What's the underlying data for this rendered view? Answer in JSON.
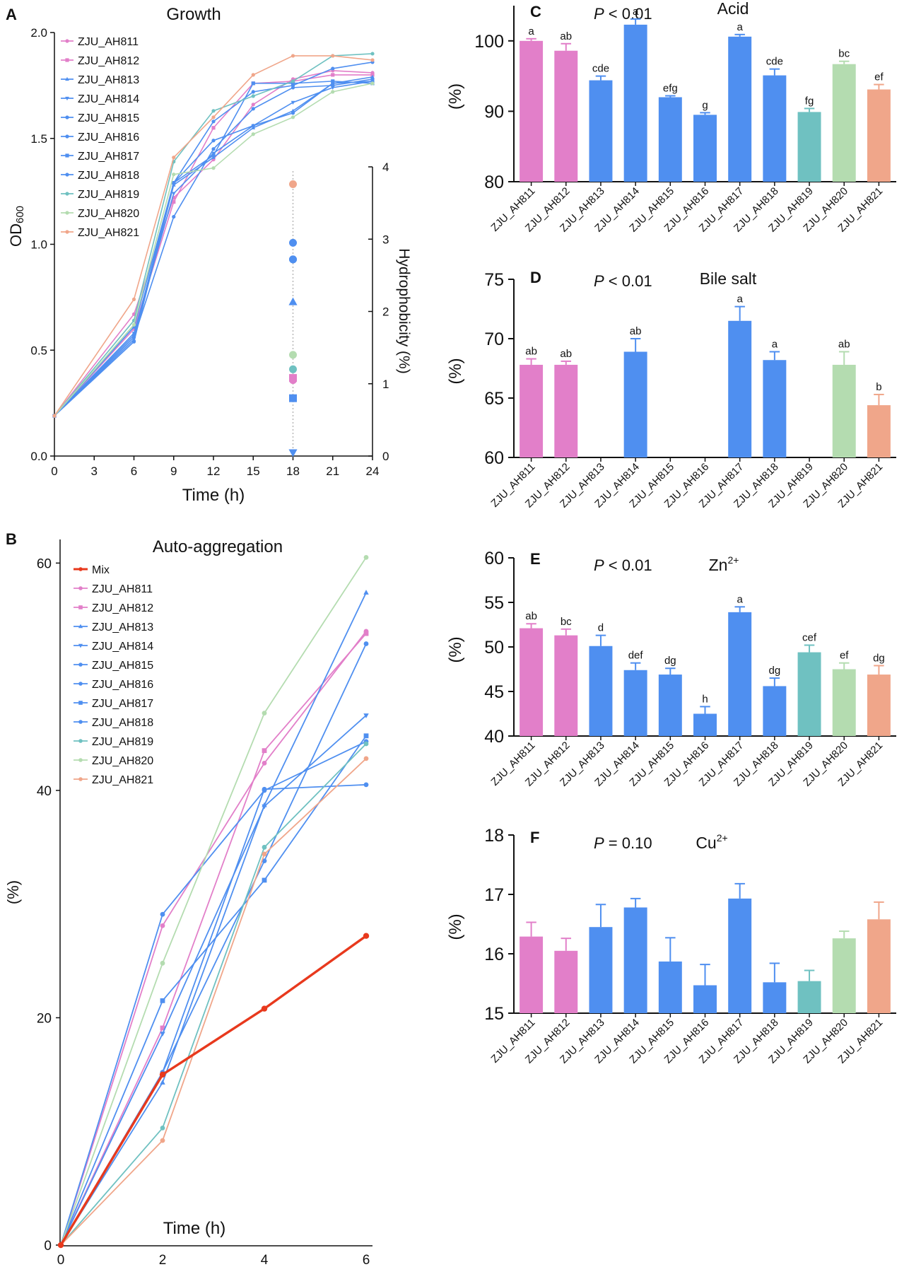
{
  "strains": [
    "ZJU_AH811",
    "ZJU_AH812",
    "ZJU_AH813",
    "ZJU_AH814",
    "ZJU_AH815",
    "ZJU_AH816",
    "ZJU_AH817",
    "ZJU_AH818",
    "ZJU_AH819",
    "ZJU_AH820",
    "ZJU_AH821"
  ],
  "colors": [
    "#e27fc9",
    "#e27fc9",
    "#4f8ff0",
    "#4f8ff0",
    "#4f8ff0",
    "#4f8ff0",
    "#4f8ff0",
    "#4f8ff0",
    "#6fc1c1",
    "#b4dcb0",
    "#f0a68a"
  ],
  "mix_color": "#e8391d",
  "chart_data": [
    {
      "panel": "A",
      "type": "line",
      "title": "Growth",
      "xlabel": "Time (h)",
      "ylabel_main": "OD",
      "ylabel_sub": "600",
      "y2label": "Hydrophobicity (%)",
      "x": [
        0,
        6,
        9,
        12,
        15,
        18,
        21,
        24
      ],
      "xlim": [
        0,
        24
      ],
      "ylim": [
        0,
        2.0
      ],
      "xticks": [
        "0",
        "3",
        "6",
        "9",
        "12",
        "15",
        "18",
        "21",
        "24"
      ],
      "yticks": [
        "0.0",
        "0.5",
        "1.0",
        "1.5",
        "2.0"
      ],
      "y2lim": [
        0,
        4
      ],
      "y2ticks": [
        "0",
        "1",
        "2",
        "3",
        "4"
      ],
      "series": [
        {
          "name": "ZJU_AH811",
          "values": [
            0.19,
            0.67,
            1.22,
            1.4,
            1.66,
            1.78,
            1.82,
            1.81
          ]
        },
        {
          "name": "ZJU_AH812",
          "values": [
            0.19,
            0.6,
            1.2,
            1.55,
            1.76,
            1.77,
            1.8,
            1.8
          ]
        },
        {
          "name": "ZJU_AH813",
          "values": [
            0.19,
            0.55,
            1.28,
            1.41,
            1.55,
            1.63,
            1.76,
            1.79
          ]
        },
        {
          "name": "ZJU_AH814",
          "values": [
            0.19,
            0.58,
            1.24,
            1.43,
            1.56,
            1.67,
            1.74,
            1.77
          ]
        },
        {
          "name": "ZJU_AH815",
          "values": [
            0.19,
            0.56,
            1.13,
            1.45,
            1.64,
            1.74,
            1.75,
            1.78
          ]
        },
        {
          "name": "ZJU_AH816",
          "values": [
            0.19,
            0.54,
            1.29,
            1.49,
            1.56,
            1.62,
            1.76,
            1.77
          ]
        },
        {
          "name": "ZJU_AH817",
          "values": [
            0.19,
            0.57,
            1.29,
            1.42,
            1.76,
            1.76,
            1.77,
            1.76
          ]
        },
        {
          "name": "ZJU_AH818",
          "values": [
            0.19,
            0.61,
            1.29,
            1.58,
            1.72,
            1.75,
            1.83,
            1.86
          ]
        },
        {
          "name": "ZJU_AH819",
          "values": [
            0.19,
            0.64,
            1.39,
            1.63,
            1.7,
            1.77,
            1.89,
            1.9
          ]
        },
        {
          "name": "ZJU_AH820",
          "values": [
            0.19,
            0.62,
            1.33,
            1.36,
            1.52,
            1.6,
            1.72,
            1.76
          ]
        },
        {
          "name": "ZJU_AH821",
          "values": [
            0.19,
            0.74,
            1.41,
            1.6,
            1.8,
            1.89,
            1.89,
            1.87
          ]
        }
      ],
      "hydrophobicity_x": 18,
      "hydrophobicity": [
        {
          "strain": "ZJU_AH811",
          "value": 1.05,
          "marker": "circle"
        },
        {
          "strain": "ZJU_AH812",
          "value": 1.08,
          "marker": "square"
        },
        {
          "strain": "ZJU_AH813",
          "value": 2.95,
          "marker": "circle"
        },
        {
          "strain": "ZJU_AH814",
          "value": 0.05,
          "marker": "triangle-down"
        },
        {
          "strain": "ZJU_AH815",
          "value": 2.72,
          "marker": "circle"
        },
        {
          "strain": "ZJU_AH816",
          "value": 2.72,
          "marker": "circle"
        },
        {
          "strain": "ZJU_AH817",
          "value": 0.8,
          "marker": "square"
        },
        {
          "strain": "ZJU_AH818",
          "value": 2.13,
          "marker": "triangle"
        },
        {
          "strain": "ZJU_AH819",
          "value": 1.2,
          "marker": "circle"
        },
        {
          "strain": "ZJU_AH820",
          "value": 1.4,
          "marker": "circle"
        },
        {
          "strain": "ZJU_AH821",
          "value": 3.76,
          "marker": "circle"
        }
      ]
    },
    {
      "panel": "B",
      "type": "line",
      "title": "Auto-aggregation",
      "xlabel": "Time (h)",
      "ylabel": "(%)",
      "x": [
        0,
        2,
        4,
        6
      ],
      "xlim": [
        0,
        6
      ],
      "ylim": [
        0,
        65
      ],
      "xticks": [
        "0",
        "2",
        "4",
        "6"
      ],
      "yticks": [
        "0",
        "20",
        "40",
        "60"
      ],
      "mix": {
        "name": "Mix",
        "values": [
          0,
          15.0,
          20.8,
          27.2
        ]
      },
      "series": [
        {
          "name": "ZJU_AH811",
          "values": [
            0,
            28.1,
            42.4,
            54.0
          ]
        },
        {
          "name": "ZJU_AH812",
          "values": [
            0,
            19.1,
            43.5,
            53.8
          ]
        },
        {
          "name": "ZJU_AH813",
          "values": [
            0,
            14.3,
            38.7,
            57.4
          ]
        },
        {
          "name": "ZJU_AH814",
          "values": [
            0,
            18.6,
            38.6,
            46.6
          ]
        },
        {
          "name": "ZJU_AH815",
          "values": [
            0,
            29.1,
            40.0,
            44.3
          ]
        },
        {
          "name": "ZJU_AH816",
          "values": [
            0,
            15.2,
            40.1,
            40.5
          ]
        },
        {
          "name": "ZJU_AH817",
          "values": [
            0,
            21.5,
            32.1,
            44.8
          ]
        },
        {
          "name": "ZJU_AH818",
          "values": [
            0,
            15.2,
            33.8,
            52.9
          ]
        },
        {
          "name": "ZJU_AH819",
          "values": [
            0,
            10.3,
            35.0,
            44.1
          ]
        },
        {
          "name": "ZJU_AH820",
          "values": [
            0,
            24.8,
            46.8,
            60.5
          ]
        },
        {
          "name": "ZJU_AH821",
          "values": [
            0,
            9.2,
            34.4,
            42.8
          ]
        }
      ]
    },
    {
      "panel": "C",
      "type": "bar",
      "title": "Acid",
      "stat_p": "P",
      "stat_rest": " < 0.01",
      "ylabel": "(%)",
      "ylim": [
        80,
        105
      ],
      "yticks": [
        "80",
        "90",
        "100"
      ],
      "values": [
        100.0,
        98.6,
        94.4,
        102.3,
        92.0,
        89.5,
        100.6,
        95.1,
        89.9,
        96.7,
        93.1
      ],
      "errors": [
        0.3,
        1.0,
        0.6,
        0.8,
        0.2,
        0.3,
        0.3,
        0.9,
        0.5,
        0.4,
        0.7
      ],
      "letters": [
        "a",
        "ab",
        "cde",
        "a",
        "efg",
        "g",
        "a",
        "cde",
        "fg",
        "bc",
        "ef"
      ]
    },
    {
      "panel": "D",
      "type": "bar",
      "title": "Bile salt",
      "stat_p": "P",
      "stat_rest": " < 0.01",
      "ylabel": "(%)",
      "ylim": [
        60,
        75
      ],
      "yticks": [
        "60",
        "65",
        "70",
        "75"
      ],
      "values": [
        67.8,
        67.8,
        null,
        68.9,
        null,
        null,
        71.5,
        68.2,
        null,
        67.8,
        64.4
      ],
      "errors": [
        0.5,
        0.3,
        null,
        1.1,
        null,
        null,
        1.2,
        0.7,
        null,
        1.1,
        0.9
      ],
      "letters": [
        "ab",
        "ab",
        "",
        "ab",
        "",
        "",
        "a",
        "a",
        "",
        "ab",
        "b"
      ]
    },
    {
      "panel": "E",
      "type": "bar",
      "title": "Zn",
      "title_sup": "2+",
      "stat_p": "P",
      "stat_rest": " < 0.01",
      "ylabel": "(%)",
      "ylim": [
        40,
        60
      ],
      "yticks": [
        "40",
        "45",
        "50",
        "55",
        "60"
      ],
      "values": [
        52.1,
        51.3,
        50.1,
        47.4,
        46.9,
        42.5,
        53.9,
        45.6,
        49.4,
        47.5,
        46.9
      ],
      "errors": [
        0.5,
        0.7,
        1.2,
        0.8,
        0.7,
        0.8,
        0.6,
        0.9,
        0.8,
        0.7,
        1.0
      ],
      "letters": [
        "ab",
        "bc",
        "d",
        "def",
        "dg",
        "h",
        "a",
        "dg",
        "cef",
        "ef",
        "dg"
      ]
    },
    {
      "panel": "F",
      "type": "bar",
      "title": "Cu",
      "title_sup": "2+",
      "stat_p": "P",
      "stat_rest": " = 0.10",
      "ylabel": "(%)",
      "ylim": [
        15,
        18
      ],
      "yticks": [
        "15",
        "16",
        "17",
        "18"
      ],
      "values": [
        16.29,
        16.05,
        16.45,
        16.78,
        15.87,
        15.47,
        16.93,
        15.52,
        15.54,
        16.26,
        16.58
      ],
      "errors": [
        0.24,
        0.21,
        0.38,
        0.15,
        0.4,
        0.35,
        0.25,
        0.32,
        0.18,
        0.12,
        0.29
      ],
      "letters": [
        "",
        "",
        "",
        "",
        "",
        "",
        "",
        "",
        "",
        "",
        ""
      ]
    }
  ]
}
